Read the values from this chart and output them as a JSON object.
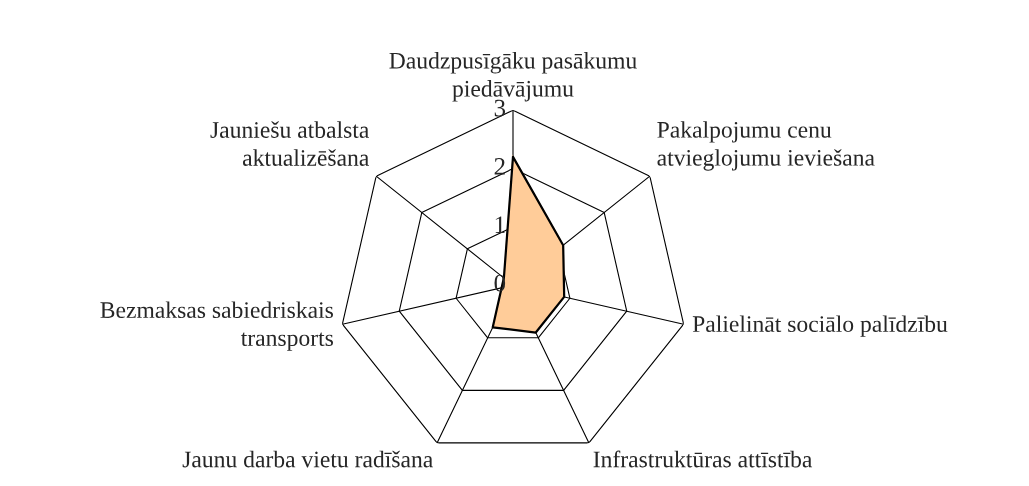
{
  "chart_data": {
    "type": "radar",
    "categories": [
      "Daudzpusīgāku pasākumu\npiedāvājumu",
      "Pakalpojumu cenu\natvieglojumu ieviešana",
      "Palielināt sociālo palīdzību",
      "Infrastruktūras attīstība",
      "Jaunu darba vietu radīšana",
      "Bezmaksas sabiedriskais\ntransports",
      "Jauniešu atbalsta\naktualizēšana"
    ],
    "series": [
      {
        "color": "#ffcc99",
        "values": [
          2.2,
          1.1,
          0.9,
          0.9,
          0.8,
          0.2,
          0.2
        ]
      }
    ],
    "ylim": [
      0,
      3
    ],
    "yticks": [
      0,
      1,
      2,
      3
    ],
    "grid": true,
    "legend": false
  }
}
